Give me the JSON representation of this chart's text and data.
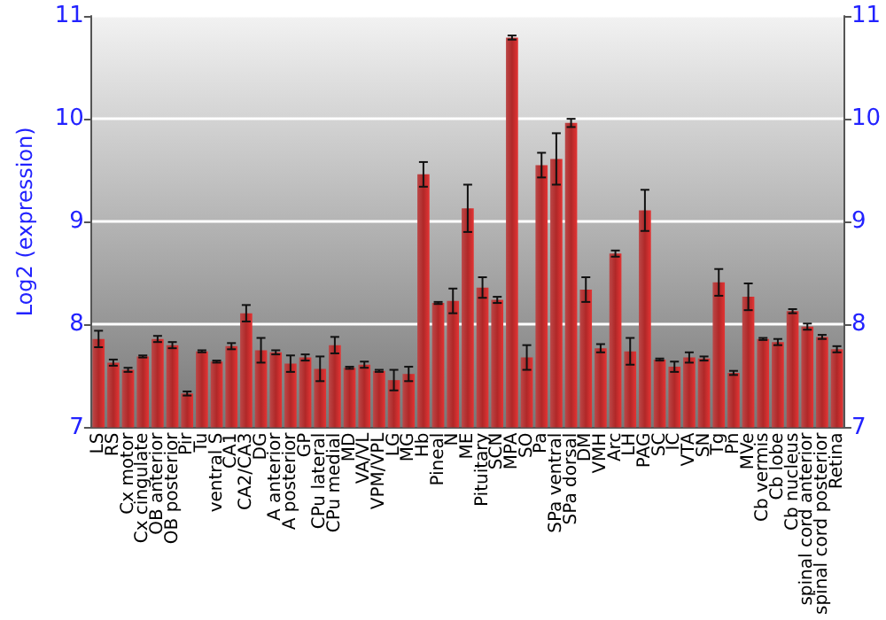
{
  "chart_data": {
    "type": "bar",
    "ylabel": "Log2 (expression)",
    "categories": [
      "LS",
      "RS",
      "Cx motor",
      "Cx cingulate",
      "OB anterior",
      "OB posterior",
      "Pir",
      "Tu",
      "ventral S",
      "CA1",
      "CA2/CA3",
      "DG",
      "A anterior",
      "A posterior",
      "GP",
      "CPu lateral",
      "CPu medial",
      "MD",
      "VA/VL",
      "VPM/VPL",
      "LG",
      "MG",
      "Hb",
      "Pineal",
      "N",
      "ME",
      "Pituitary",
      "SCN",
      "MPA",
      "SO",
      "Pa",
      "SPa ventral",
      "SPa dorsal",
      "DM",
      "VMH",
      "Arc",
      "LH",
      "PAG",
      "SC",
      "IC",
      "VTA",
      "SN",
      "Tg",
      "Pn",
      "MVe",
      "Cb vermis",
      "Cb lobe",
      "Cb nucleus",
      "spinal cord anterior",
      "spinal cord posterior",
      "Retina"
    ],
    "values": [
      7.86,
      7.63,
      7.56,
      7.69,
      7.86,
      7.8,
      7.33,
      7.74,
      7.64,
      7.79,
      8.11,
      7.75,
      7.73,
      7.62,
      7.68,
      7.57,
      7.8,
      7.58,
      7.61,
      7.55,
      7.46,
      7.52,
      9.46,
      8.21,
      8.23,
      9.13,
      8.36,
      8.24,
      10.79,
      7.68,
      9.55,
      9.61,
      9.96,
      8.34,
      7.77,
      8.69,
      7.74,
      9.11,
      7.66,
      7.59,
      7.68,
      7.67,
      8.41,
      7.53,
      8.27,
      7.86,
      7.83,
      8.13,
      7.98,
      7.88,
      7.76
    ],
    "errors": [
      0.08,
      0.03,
      0.02,
      0.01,
      0.03,
      0.03,
      0.02,
      0.01,
      0.01,
      0.03,
      0.08,
      0.12,
      0.02,
      0.08,
      0.03,
      0.12,
      0.08,
      0.01,
      0.03,
      0.01,
      0.1,
      0.07,
      0.12,
      0.01,
      0.12,
      0.23,
      0.1,
      0.03,
      0.02,
      0.12,
      0.12,
      0.25,
      0.04,
      0.12,
      0.04,
      0.03,
      0.13,
      0.2,
      0.01,
      0.05,
      0.05,
      0.02,
      0.13,
      0.02,
      0.13,
      0.01,
      0.03,
      0.02,
      0.03,
      0.02,
      0.03
    ],
    "color": "#b02828",
    "ylim": [
      7,
      11
    ],
    "yticks": [
      7,
      8,
      9,
      10,
      11
    ],
    "y2lim": [
      7,
      11
    ],
    "y2ticks": [
      7,
      8,
      9,
      10,
      11
    ],
    "grid": "y"
  }
}
